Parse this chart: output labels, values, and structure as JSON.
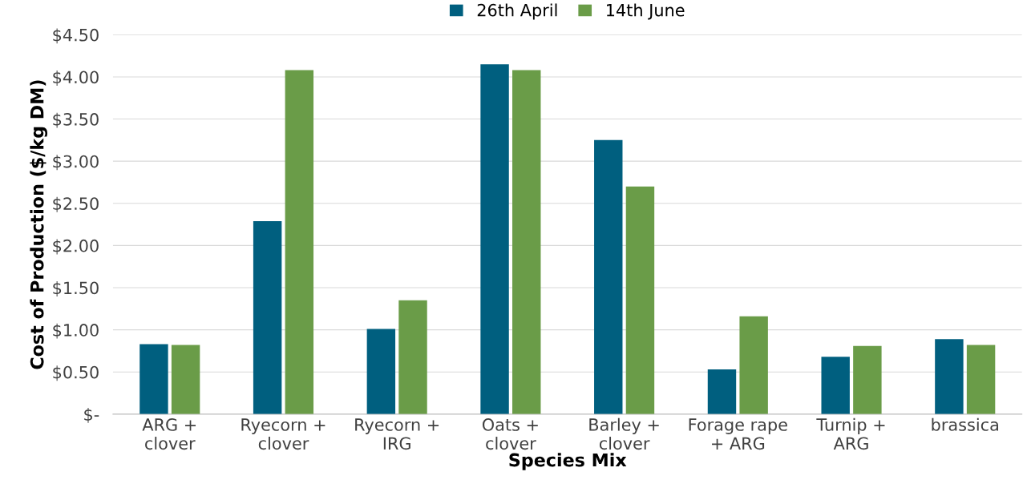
{
  "chart_data": {
    "type": "bar",
    "xlabel": "Species Mix",
    "ylabel": "Cost of Production ($/kg DM)",
    "categories": [
      "ARG +\nclover",
      "Ryecorn +\nclover",
      "Ryecorn +\nIRG",
      "Oats +\nclover",
      "Barley +\nclover",
      "Forage rape\n+ ARG",
      "Turnip +\nARG",
      "brassica"
    ],
    "series": [
      {
        "name": "26th April",
        "color": "#005f7f",
        "values": [
          0.83,
          2.29,
          1.01,
          4.15,
          3.25,
          0.53,
          0.68,
          0.89
        ]
      },
      {
        "name": "14th June",
        "color": "#6a9c48",
        "values": [
          0.82,
          4.08,
          1.35,
          4.08,
          2.7,
          1.16,
          0.81,
          0.82
        ]
      }
    ],
    "ylim": [
      0,
      4.5
    ],
    "yticks": [
      {
        "value": 0,
        "label": "$-"
      },
      {
        "value": 0.5,
        "label": "$0.50"
      },
      {
        "value": 1,
        "label": "$1.00"
      },
      {
        "value": 1.5,
        "label": "$1.50"
      },
      {
        "value": 2,
        "label": "$2.00"
      },
      {
        "value": 2.5,
        "label": "$2.50"
      },
      {
        "value": 3,
        "label": "$3.00"
      },
      {
        "value": 3.5,
        "label": "$3.50"
      },
      {
        "value": 4,
        "label": "$4.00"
      },
      {
        "value": 4.5,
        "label": "$4.50"
      }
    ],
    "grid": "y",
    "legend": "top"
  }
}
